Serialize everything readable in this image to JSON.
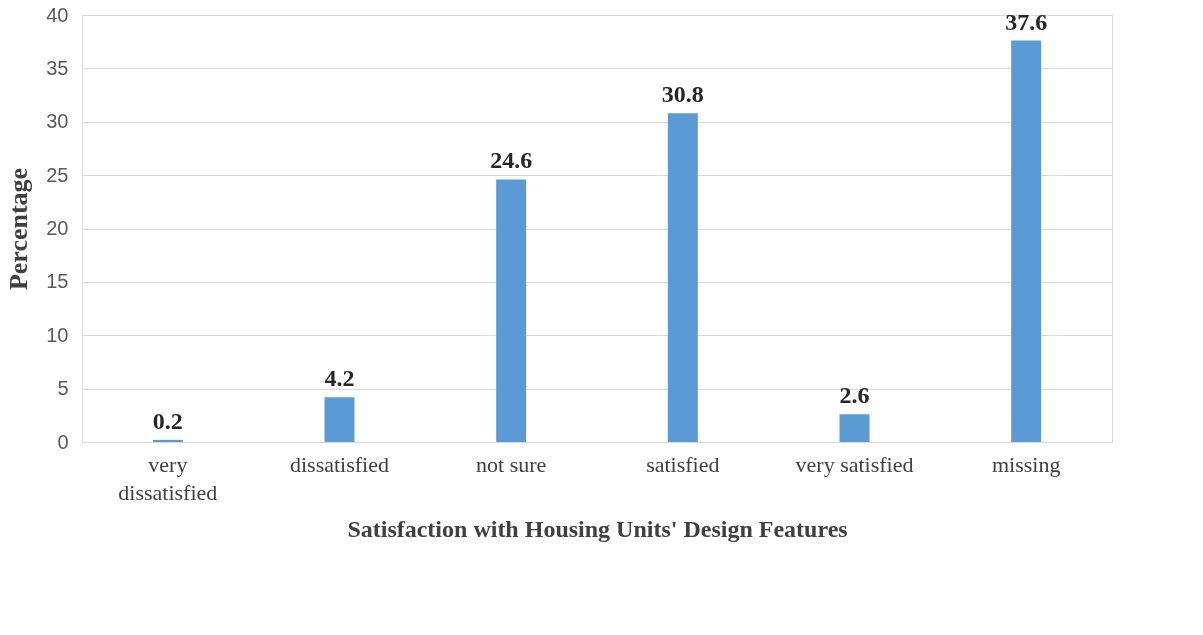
{
  "chart_data": {
    "type": "bar",
    "xlabel": "Satisfaction with Housing Units' Design Features",
    "ylabel": "Percentage",
    "categories": [
      "very dissatisfied",
      "dissatisfied",
      "not sure",
      "satisfied",
      "very satisfied",
      "missing"
    ],
    "values": [
      0.2,
      4.2,
      24.6,
      30.8,
      2.6,
      37.6
    ],
    "color": "#5b9bd5",
    "ylim": [
      0,
      40
    ],
    "yticks": [
      0,
      5,
      10,
      15,
      20,
      25,
      30,
      35,
      40
    ],
    "grid": "y",
    "data_labels": true
  }
}
